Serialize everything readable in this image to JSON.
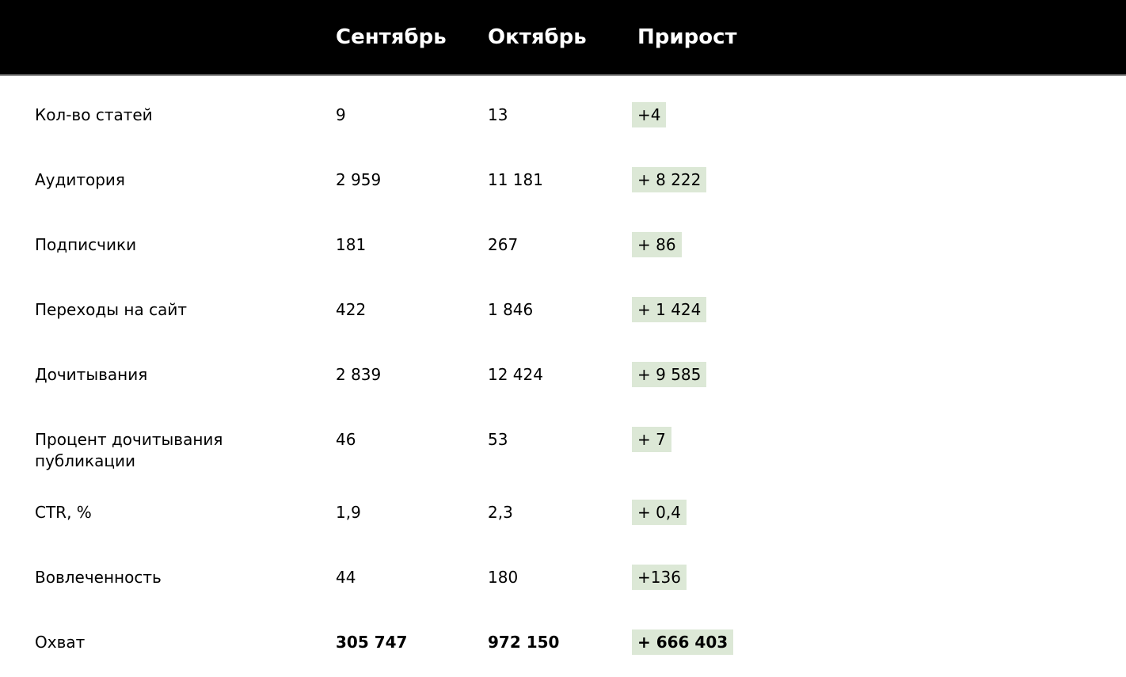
{
  "header": {
    "columns": {
      "september": "Сентябрь",
      "october": "Октябрь",
      "growth": "Прирост"
    }
  },
  "rows": [
    {
      "label": "Кол-во статей",
      "september": "9",
      "october": "13",
      "growth": "+4"
    },
    {
      "label": "Аудитория",
      "september": "2 959",
      "october": "11 181",
      "growth": "+ 8 222"
    },
    {
      "label": "Подписчики",
      "september": "181",
      "october": "267",
      "growth": "+ 86"
    },
    {
      "label": "Переходы на сайт",
      "september": "422",
      "october": "1 846",
      "growth": "+ 1 424"
    },
    {
      "label": "Дочитывания",
      "september": "2 839",
      "october": "12 424",
      "growth": "+ 9 585"
    },
    {
      "label": "Процент дочитывания публикации",
      "september": "46",
      "october": "53",
      "growth": "+ 7"
    },
    {
      "label": "CTR, %",
      "september": "1,9",
      "october": "2,3",
      "growth": "+ 0,4"
    },
    {
      "label": "Вовлеченность",
      "september": "44",
      "october": "180",
      "growth": "+136"
    },
    {
      "label": "Охват",
      "september": "305 747",
      "october": "972 150",
      "growth": "+ 666 403"
    }
  ],
  "colors": {
    "header_bg": "#000000",
    "header_text": "#ffffff",
    "growth_highlight": "#dce8d6",
    "body_text": "#000000",
    "header_divider": "#8f8f8f"
  },
  "chart_data": {
    "type": "table",
    "title": "",
    "categories": [
      "Кол-во статей",
      "Аудитория",
      "Подписчики",
      "Переходы на сайт",
      "Дочитывания",
      "Процент дочитывания публикации",
      "CTR, %",
      "Вовлеченность",
      "Охват"
    ],
    "series": [
      {
        "name": "Сентябрь",
        "values": [
          9,
          2959,
          181,
          422,
          2839,
          46,
          1.9,
          44,
          305747
        ]
      },
      {
        "name": "Октябрь",
        "values": [
          13,
          11181,
          267,
          1846,
          12424,
          53,
          2.3,
          180,
          972150
        ]
      },
      {
        "name": "Прирост",
        "values": [
          4,
          8222,
          86,
          1424,
          9585,
          7,
          0.4,
          136,
          666403
        ]
      }
    ],
    "layout_hints": {
      "growth_column_highlighted": true,
      "totals_row_bold": "Охват",
      "grid": false,
      "legend_position": "none"
    }
  }
}
